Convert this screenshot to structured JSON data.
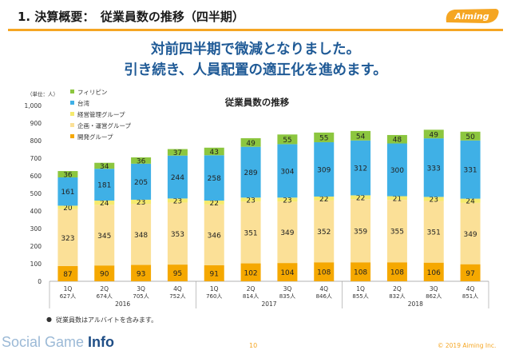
{
  "header": {
    "title": "1. 決算概要：　従業員数の推移（四半期）",
    "logo_text": "Aiming"
  },
  "headline": {
    "line1": "対前四半期で微減となりました。",
    "line2": "引き続き、人員配置の適正化を進めます。"
  },
  "footer": {
    "note_bullet": "●",
    "note": "従業員数はアルバイトを含みます。",
    "page": "10",
    "copyright": "© 2019 Aiming Inc.",
    "watermark_a": "Social Game ",
    "watermark_b": "Info"
  },
  "chart_data": {
    "type": "bar",
    "stacked": true,
    "title": "従業員数の推移",
    "unit_label": "（単位：人）",
    "ylim": [
      0,
      1000
    ],
    "yticks": [
      "0",
      "100",
      "200",
      "300",
      "400",
      "500",
      "600",
      "700",
      "800",
      "900",
      "1,000"
    ],
    "categories": [
      "1Q",
      "2Q",
      "3Q",
      "4Q",
      "1Q",
      "2Q",
      "3Q",
      "4Q",
      "1Q",
      "2Q",
      "3Q",
      "4Q"
    ],
    "totals": [
      "627人",
      "674人",
      "705人",
      "752人",
      "760人",
      "814人",
      "835人",
      "846人",
      "855人",
      "832人",
      "862人",
      "851人"
    ],
    "years": [
      {
        "label": "2016",
        "start": 0,
        "end": 3
      },
      {
        "label": "2017",
        "start": 4,
        "end": 7
      },
      {
        "label": "2018",
        "start": 8,
        "end": 11
      }
    ],
    "series": [
      {
        "name": "開発グループ",
        "color": "#f5a800",
        "values": [
          87,
          90,
          93,
          95,
          91,
          102,
          104,
          108,
          108,
          108,
          106,
          97
        ]
      },
      {
        "name": "企画・運営グループ",
        "color": "#fbe097",
        "values": [
          323,
          345,
          348,
          353,
          346,
          351,
          349,
          352,
          359,
          355,
          351,
          349
        ]
      },
      {
        "name": "経営管理グループ",
        "color": "#f5ea6e",
        "values": [
          20,
          24,
          23,
          23,
          22,
          23,
          23,
          22,
          22,
          21,
          23,
          24
        ]
      },
      {
        "name": "台湾",
        "color": "#3fb0e6",
        "values": [
          161,
          181,
          205,
          244,
          258,
          289,
          304,
          309,
          312,
          300,
          333,
          331
        ]
      },
      {
        "name": "フィリピン",
        "color": "#8cc63f",
        "values": [
          36,
          34,
          36,
          37,
          43,
          49,
          55,
          55,
          54,
          48,
          49,
          50
        ]
      }
    ],
    "legend_order": [
      4,
      3,
      2,
      1,
      0
    ],
    "legend_position": "top-left",
    "grid": false
  }
}
